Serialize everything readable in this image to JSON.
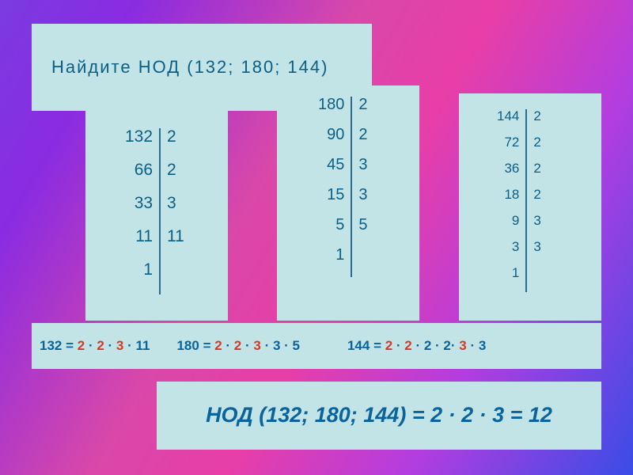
{
  "title": "Найдите  НОД  (132; 180; 144)",
  "colors": {
    "panel_bg": "#c3e4e6",
    "text_primary": "#0a5f87",
    "text_eq": "#0a639a",
    "highlight": "#d43a2a",
    "divider": "#2a6c8e"
  },
  "factor1": {
    "left": [
      "132",
      "66",
      "33",
      "11",
      "1"
    ],
    "right": [
      "2",
      "2",
      "3",
      "11",
      ""
    ]
  },
  "factor2": {
    "left": [
      "180",
      "90",
      "45",
      "15",
      "5",
      "1"
    ],
    "right": [
      "2",
      "2",
      "3",
      "3",
      "5",
      ""
    ]
  },
  "factor3": {
    "left": [
      "144",
      "72",
      "36",
      "18",
      "9",
      "3",
      "1"
    ],
    "right": [
      "2",
      "2",
      "2",
      "2",
      "3",
      "3",
      ""
    ]
  },
  "eq1": {
    "n": "132",
    "parts": [
      {
        "t": " = ",
        "hl": false
      },
      {
        "t": "2",
        "hl": true
      },
      {
        "t": " · ",
        "hl": false
      },
      {
        "t": "2",
        "hl": true
      },
      {
        "t": " · ",
        "hl": false
      },
      {
        "t": "3",
        "hl": true
      },
      {
        "t": " · 11",
        "hl": false
      }
    ]
  },
  "eq2": {
    "n": "180",
    "parts": [
      {
        "t": " = ",
        "hl": false
      },
      {
        "t": "2",
        "hl": true
      },
      {
        "t": " · ",
        "hl": false
      },
      {
        "t": "2",
        "hl": true
      },
      {
        "t": " · ",
        "hl": false
      },
      {
        "t": "3",
        "hl": true
      },
      {
        "t": " · 3 · 5",
        "hl": false
      }
    ]
  },
  "eq3": {
    "n": "144",
    "parts": [
      {
        "t": " = ",
        "hl": false
      },
      {
        "t": "2",
        "hl": true
      },
      {
        "t": " · ",
        "hl": false
      },
      {
        "t": "2",
        "hl": true
      },
      {
        "t": " · 2 · 2· ",
        "hl": false
      },
      {
        "t": "3",
        "hl": true
      },
      {
        "t": " · 3",
        "hl": false
      }
    ]
  },
  "answer": "НОД (132; 180; 144) = 2 · 2 · 3 = 12"
}
